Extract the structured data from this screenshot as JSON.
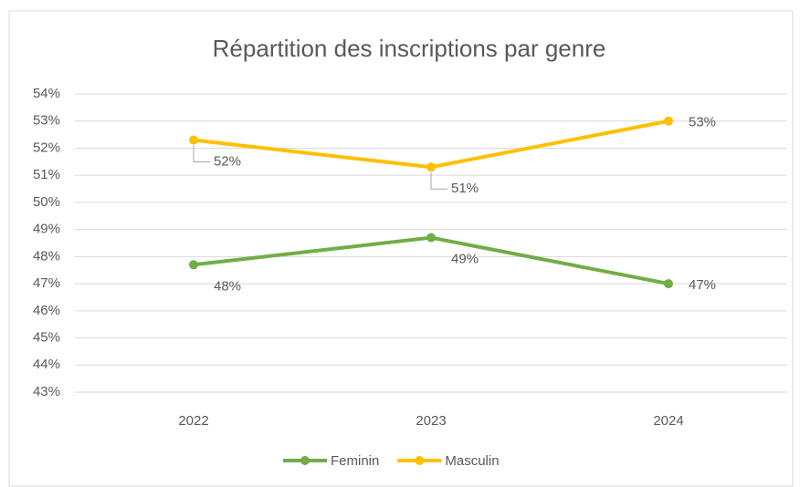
{
  "chart_data": {
    "type": "line",
    "title": "Répartition des inscriptions par genre",
    "categories": [
      "2022",
      "2023",
      "2024"
    ],
    "series": [
      {
        "name": "Feminin",
        "color": "#70ad47",
        "values": [
          47.7,
          48.7,
          47.0
        ],
        "value_labels": [
          "48%",
          "49%",
          "47%"
        ]
      },
      {
        "name": "Masculin",
        "color": "#ffc000",
        "values": [
          52.3,
          51.3,
          53.0
        ],
        "value_labels": [
          "52%",
          "51%",
          "53%"
        ]
      }
    ],
    "ylim": [
      43,
      54
    ],
    "yticks": [
      {
        "value": 43,
        "label": "43%"
      },
      {
        "value": 44,
        "label": "44%"
      },
      {
        "value": 45,
        "label": "45%"
      },
      {
        "value": 46,
        "label": "46%"
      },
      {
        "value": 47,
        "label": "47%"
      },
      {
        "value": 48,
        "label": "48%"
      },
      {
        "value": 49,
        "label": "49%"
      },
      {
        "value": 50,
        "label": "50%"
      },
      {
        "value": 51,
        "label": "51%"
      },
      {
        "value": 52,
        "label": "52%"
      },
      {
        "value": 53,
        "label": "53%"
      },
      {
        "value": 54,
        "label": "54%"
      }
    ],
    "grid": true,
    "legend": "bottom"
  }
}
